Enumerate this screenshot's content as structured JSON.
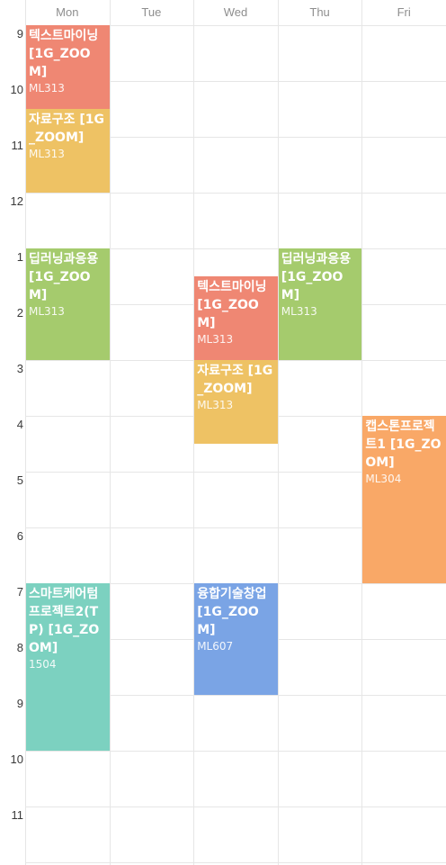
{
  "days": [
    "Mon",
    "Tue",
    "Wed",
    "Thu",
    "Fri"
  ],
  "hours": [
    "9",
    "10",
    "11",
    "12",
    "1",
    "2",
    "3",
    "4",
    "5",
    "6",
    "7",
    "8",
    "9",
    "10",
    "11"
  ],
  "start_hour": 9,
  "events": [
    {
      "title": "텍스트마이닝 [1G_ZOOM]",
      "room": "ML313",
      "day": 0,
      "start": 9.0,
      "end": 10.5,
      "color": "#EF8773"
    },
    {
      "title": "자료구조 [1G_ZOOM]",
      "room": "ML313",
      "day": 0,
      "start": 10.5,
      "end": 12.0,
      "color": "#EEC264"
    },
    {
      "title": "딥러닝과응용 [1G_ZOOM]",
      "room": "ML313",
      "day": 0,
      "start": 13.0,
      "end": 15.0,
      "color": "#A5CB6D"
    },
    {
      "title": "스마트케어텀프로젝트2(TP) [1G_ZOOM]",
      "room": "1504",
      "day": 0,
      "start": 19.0,
      "end": 22.0,
      "color": "#7CD1C0"
    },
    {
      "title": "텍스트마이닝 [1G_ZOOM]",
      "room": "ML313",
      "day": 2,
      "start": 13.5,
      "end": 15.0,
      "color": "#EF8773"
    },
    {
      "title": "자료구조 [1G_ZOOM]",
      "room": "ML313",
      "day": 2,
      "start": 15.0,
      "end": 16.5,
      "color": "#EEC264"
    },
    {
      "title": "융합기술창업 [1G_ZOOM]",
      "room": "ML607",
      "day": 2,
      "start": 19.0,
      "end": 21.0,
      "color": "#7AA4E5"
    },
    {
      "title": "딥러닝과응용 [1G_ZOOM]",
      "room": "ML313",
      "day": 3,
      "start": 13.0,
      "end": 15.0,
      "color": "#A5CB6D"
    },
    {
      "title": "캡스톤프로젝트1 [1G_ZOOM]",
      "room": "ML304",
      "day": 4,
      "start": 16.0,
      "end": 19.0,
      "color": "#F9A867"
    }
  ]
}
